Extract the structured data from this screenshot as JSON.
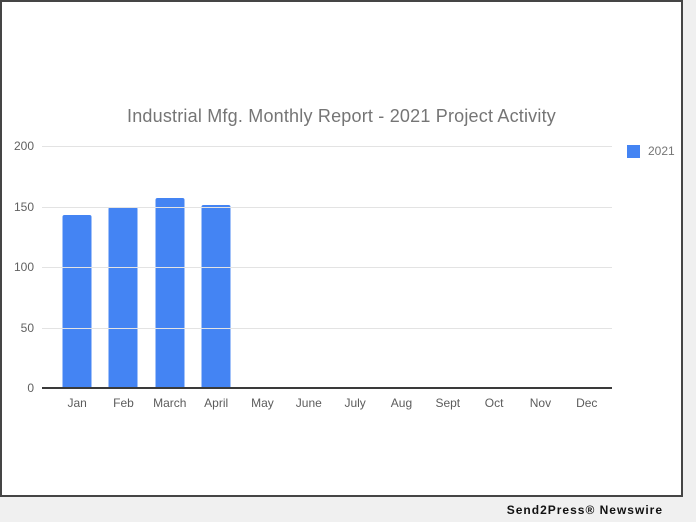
{
  "chart": {
    "legend": {
      "label": "2021",
      "color": "#4484f3"
    }
  },
  "chart_data": {
    "type": "bar",
    "title": "Industrial Mfg. Monthly Report - 2021 Project Activity",
    "categories": [
      "Jan",
      "Feb",
      "March",
      "April",
      "May",
      "June",
      "July",
      "Aug",
      "Sept",
      "Oct",
      "Nov",
      "Dec"
    ],
    "series": [
      {
        "name": "2021",
        "values": [
          143,
          150,
          157,
          151,
          0,
          0,
          0,
          0,
          0,
          0,
          0,
          0
        ]
      }
    ],
    "ylim": [
      0,
      200
    ],
    "yticks": [
      0,
      50,
      100,
      150,
      200
    ],
    "grid": true,
    "legend_position": "top-right",
    "bar_color": "#4484f3",
    "gridline_color": "#e3e3e3",
    "axis_line_color": "#3a3a3a",
    "title_color": "#757575"
  },
  "footer": {
    "text": "Send2Press® Newswire"
  }
}
